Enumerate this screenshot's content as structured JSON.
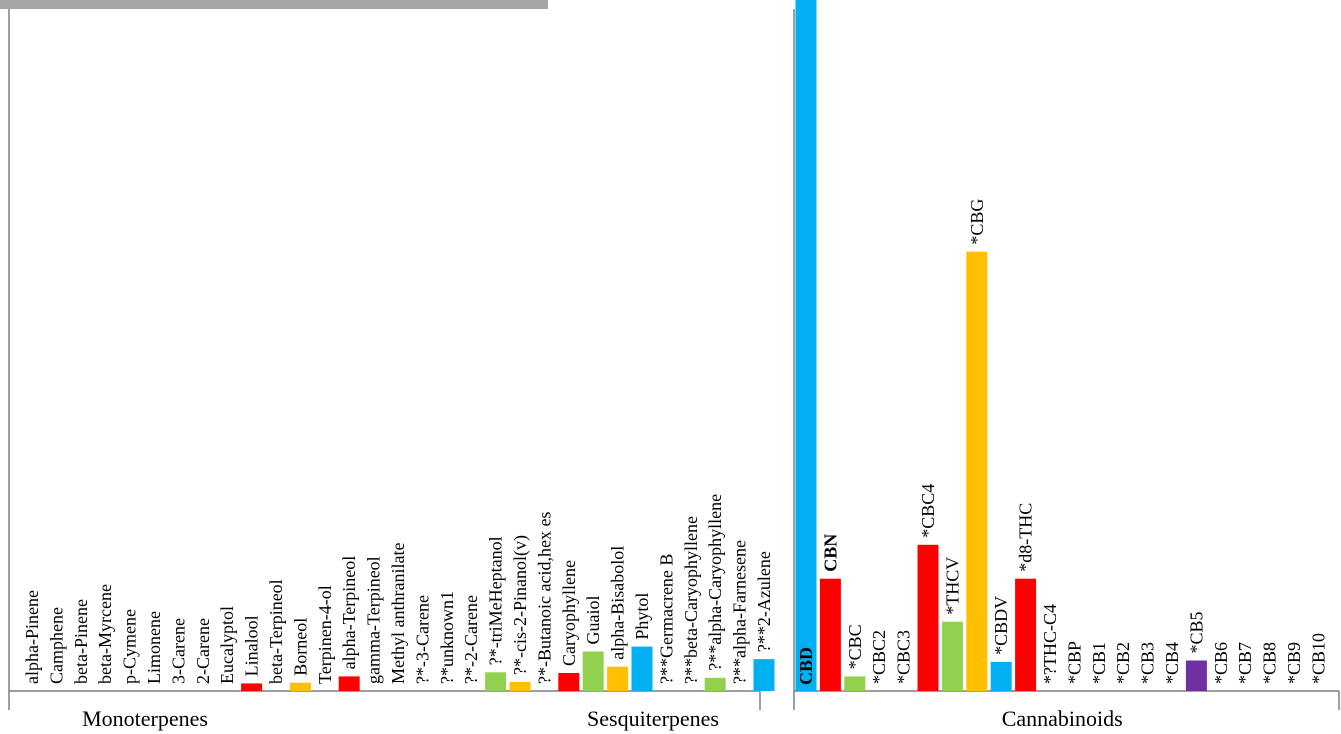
{
  "chart_data": {
    "type": "bar",
    "ylim": [
      0,
      100
    ],
    "xlabel": "",
    "ylabel": "",
    "title": "",
    "groups": [
      {
        "name": "Monoterpenes",
        "bars": [
          {
            "label": "alpha-Pinene",
            "value": 0,
            "color": ""
          },
          {
            "label": "Camphene",
            "value": 0,
            "color": ""
          },
          {
            "label": "beta-Pinene",
            "value": 0,
            "color": ""
          },
          {
            "label": "beta-Myrcene",
            "value": 0,
            "color": ""
          },
          {
            "label": "p-Cymene",
            "value": 0,
            "color": ""
          },
          {
            "label": "Limonene",
            "value": 0,
            "color": ""
          },
          {
            "label": "3-Carene",
            "value": 0,
            "color": ""
          },
          {
            "label": "2-Carene",
            "value": 0,
            "color": ""
          },
          {
            "label": "Eucalyptol",
            "value": 0,
            "color": ""
          },
          {
            "label": "Linalool",
            "value": 1.1,
            "color": "#ff0000"
          },
          {
            "label": "beta-Terpineol",
            "value": 0,
            "color": ""
          },
          {
            "label": "Borneol",
            "value": 1.2,
            "color": "#ffc000"
          },
          {
            "label": "Terpinen-4-ol",
            "value": 0,
            "color": ""
          },
          {
            "label": "alpha-Terpineol",
            "value": 2.1,
            "color": "#ff0000"
          },
          {
            "label": "gamma-Terpineol",
            "value": 0,
            "color": ""
          },
          {
            "label": "Methyl anthranilate",
            "value": 0,
            "color": ""
          },
          {
            "label": "?*-3-Carene",
            "value": 0,
            "color": ""
          },
          {
            "label": "?*unknown1",
            "value": 0,
            "color": ""
          },
          {
            "label": "?*-2-Carene",
            "value": 0,
            "color": ""
          },
          {
            "label": "?*-triMeHeptanol",
            "value": 2.7,
            "color": "#92d050"
          },
          {
            "label": "?*-cis-2-Pinanol(v)",
            "value": 1.3,
            "color": "#ffc000"
          },
          {
            "label": "?*-Butanoic acid,hex es",
            "value": 0,
            "color": ""
          }
        ]
      },
      {
        "name": "Sesquiterpenes",
        "bars": [
          {
            "label": "Caryophyllene",
            "value": 2.6,
            "color": "#ff0000"
          },
          {
            "label": "Guaiol",
            "value": 5.7,
            "color": "#92d050"
          },
          {
            "label": "alpha-Bisabolol",
            "value": 3.5,
            "color": "#ffc000"
          },
          {
            "label": "Phytol",
            "value": 6.4,
            "color": "#00b0f0"
          },
          {
            "label": "?**Germacrene B",
            "value": 0,
            "color": ""
          },
          {
            "label": "?**beta-Caryophyllene",
            "value": 0,
            "color": ""
          },
          {
            "label": "?**alpha-Caryophyllene",
            "value": 1.9,
            "color": "#92d050"
          },
          {
            "label": "?**alpha-Farnesene",
            "value": 0,
            "color": ""
          },
          {
            "label": "?**2-Azulene",
            "value": 4.6,
            "color": "#00b0f0"
          }
        ]
      },
      {
        "name": "Cannabinoids",
        "bars": [
          {
            "label": "CBD",
            "value": 100,
            "color": "#00b0f0",
            "bold": true
          },
          {
            "label": "CBN",
            "value": 16.2,
            "color": "#ff0000",
            "bold": true
          },
          {
            "label": "*CBC",
            "value": 2.1,
            "color": "#92d050"
          },
          {
            "label": "*CBC2",
            "value": 0,
            "color": ""
          },
          {
            "label": "*CBC3",
            "value": 0,
            "color": ""
          },
          {
            "label": "*CBC4",
            "value": 21.1,
            "color": "#ff0000"
          },
          {
            "label": "*THCV",
            "value": 10.0,
            "color": "#92d050"
          },
          {
            "label": "*CBG",
            "value": 63.4,
            "color": "#ffc000"
          },
          {
            "label": "*CBDV",
            "value": 4.2,
            "color": "#00b0f0"
          },
          {
            "label": "*d8-THC",
            "value": 16.2,
            "color": "#ff0000"
          },
          {
            "label": "*?THC-C4",
            "value": 0,
            "color": ""
          },
          {
            "label": "*CBP",
            "value": 0,
            "color": ""
          },
          {
            "label": "*CB1",
            "value": 0,
            "color": ""
          },
          {
            "label": "*CB2",
            "value": 0,
            "color": ""
          },
          {
            "label": "*CB3",
            "value": 0,
            "color": ""
          },
          {
            "label": "*CB4",
            "value": 0,
            "color": ""
          },
          {
            "label": "*CB5",
            "value": 4.4,
            "color": "#7030a0"
          },
          {
            "label": "*CB6",
            "value": 0,
            "color": ""
          },
          {
            "label": "*CB7",
            "value": 0,
            "color": ""
          },
          {
            "label": "*CB8",
            "value": 0,
            "color": ""
          },
          {
            "label": "*CB9",
            "value": 0,
            "color": ""
          },
          {
            "label": "*CB10",
            "value": 0,
            "color": ""
          }
        ]
      }
    ],
    "grid": false,
    "legend": "none"
  },
  "colors": {
    "axis": "#7f7f7f",
    "header_strip": "#a6a6a6"
  }
}
